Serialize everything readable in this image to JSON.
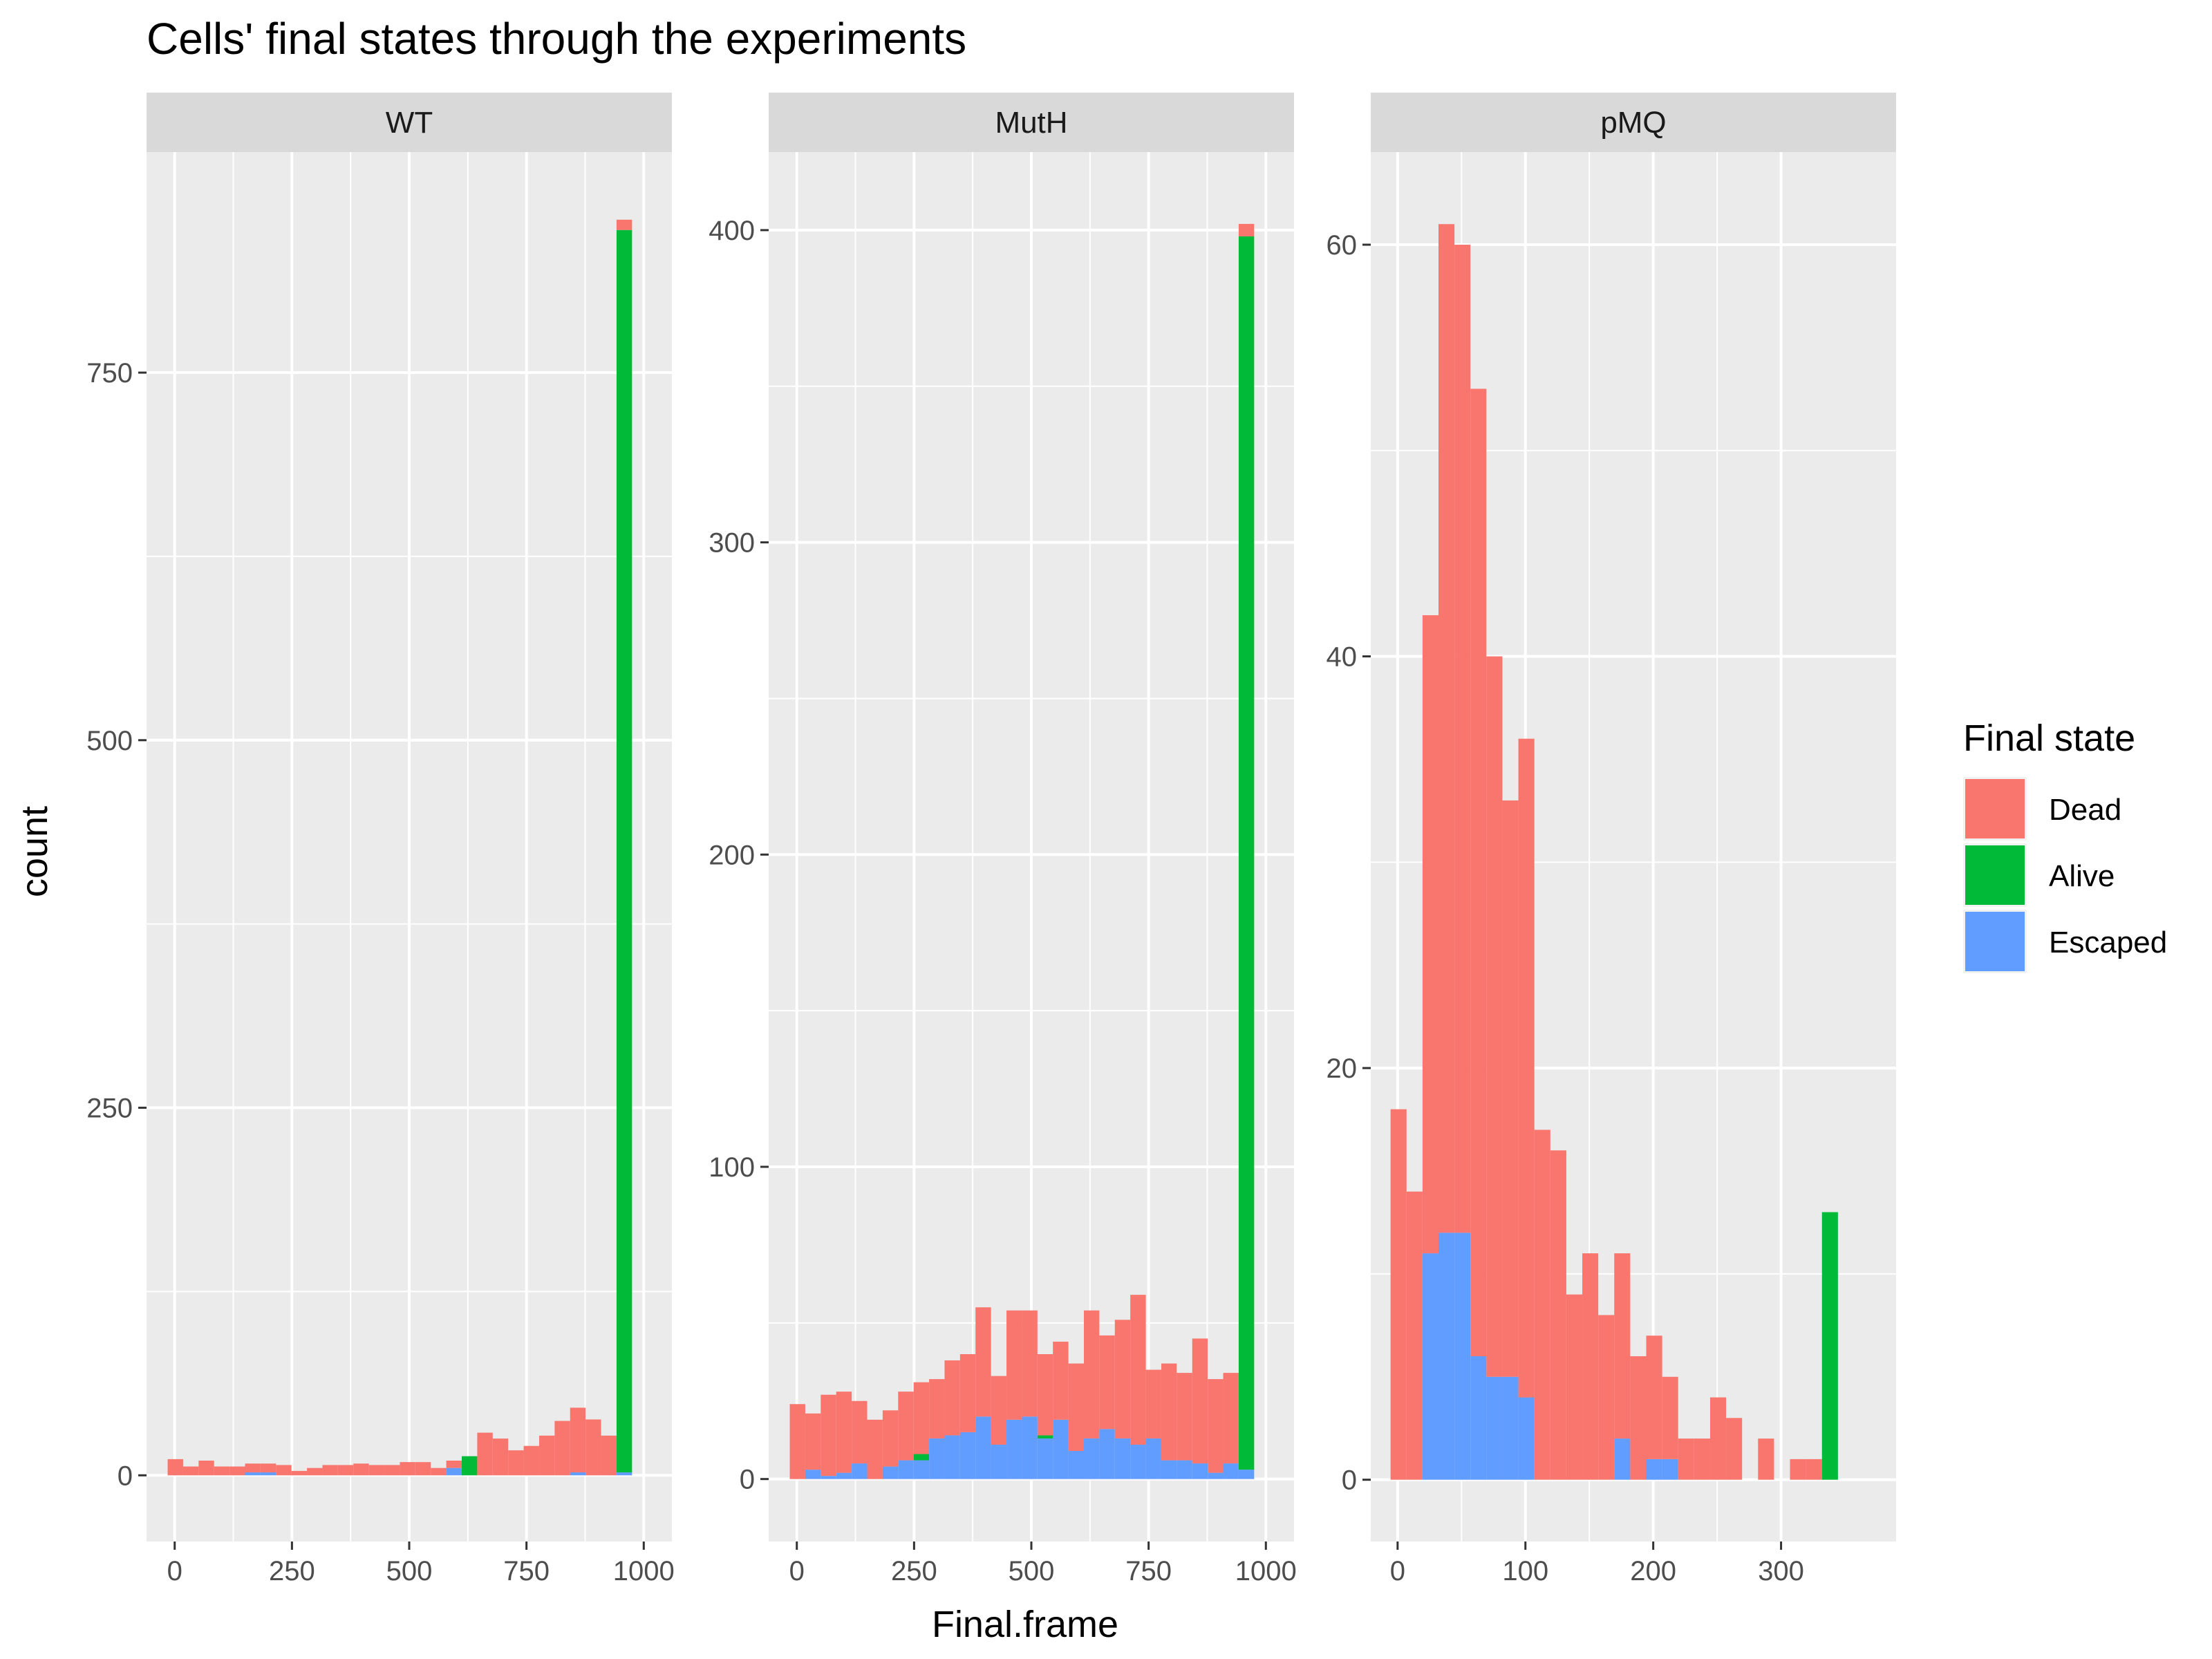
{
  "chart_data": {
    "type": "bar",
    "title": "Cells' final states through the experiments",
    "xlabel": "Final.frame",
    "ylabel": "count",
    "stacked": true,
    "legend": {
      "title": "Final state",
      "position": "right",
      "entries": [
        {
          "name": "Dead",
          "color": "#F8766D"
        },
        {
          "name": "Alive",
          "color": "#00BA38"
        },
        {
          "name": "Escaped",
          "color": "#619CFF"
        }
      ]
    },
    "colors": {
      "panel_bg": "#EBEBEB",
      "strip_bg": "#D9D9D9",
      "grid": "#FFFFFF",
      "tick": "#333333"
    },
    "facets": [
      {
        "label": "WT",
        "xlim": [
          -60,
          1060
        ],
        "ylim": [
          -45,
          900
        ],
        "xticks": [
          0,
          250,
          500,
          750,
          1000
        ],
        "yticks": [
          0,
          250,
          500,
          750
        ],
        "bin_start": -15,
        "bin_width": 33,
        "stack": [
          {
            "Escaped": 0,
            "Alive": 0,
            "Dead": 11
          },
          {
            "Escaped": 0,
            "Alive": 0,
            "Dead": 6
          },
          {
            "Escaped": 0,
            "Alive": 0,
            "Dead": 10
          },
          {
            "Escaped": 0,
            "Alive": 0,
            "Dead": 6
          },
          {
            "Escaped": 0,
            "Alive": 0,
            "Dead": 6
          },
          {
            "Escaped": 2,
            "Alive": 0,
            "Dead": 6
          },
          {
            "Escaped": 2,
            "Alive": 0,
            "Dead": 6
          },
          {
            "Escaped": 0,
            "Alive": 0,
            "Dead": 7
          },
          {
            "Escaped": 0,
            "Alive": 0,
            "Dead": 3
          },
          {
            "Escaped": 0,
            "Alive": 0,
            "Dead": 5
          },
          {
            "Escaped": 0,
            "Alive": 0,
            "Dead": 7
          },
          {
            "Escaped": 0,
            "Alive": 0,
            "Dead": 7
          },
          {
            "Escaped": 0,
            "Alive": 0,
            "Dead": 8
          },
          {
            "Escaped": 0,
            "Alive": 0,
            "Dead": 7
          },
          {
            "Escaped": 0,
            "Alive": 0,
            "Dead": 7
          },
          {
            "Escaped": 0,
            "Alive": 0,
            "Dead": 9
          },
          {
            "Escaped": 0,
            "Alive": 0,
            "Dead": 9
          },
          {
            "Escaped": 0,
            "Alive": 0,
            "Dead": 5
          },
          {
            "Escaped": 5,
            "Alive": 0,
            "Dead": 5
          },
          {
            "Escaped": 0,
            "Alive": 13,
            "Dead": 0
          },
          {
            "Escaped": 0,
            "Alive": 0,
            "Dead": 29
          },
          {
            "Escaped": 0,
            "Alive": 0,
            "Dead": 25
          },
          {
            "Escaped": 0,
            "Alive": 0,
            "Dead": 17
          },
          {
            "Escaped": 0,
            "Alive": 0,
            "Dead": 20
          },
          {
            "Escaped": 0,
            "Alive": 0,
            "Dead": 27
          },
          {
            "Escaped": 0,
            "Alive": 0,
            "Dead": 37
          },
          {
            "Escaped": 2,
            "Alive": 0,
            "Dead": 44
          },
          {
            "Escaped": 0,
            "Alive": 0,
            "Dead": 38
          },
          {
            "Escaped": 0,
            "Alive": 0,
            "Dead": 27
          },
          {
            "Escaped": 2,
            "Alive": 845,
            "Dead": 7
          }
        ]
      },
      {
        "label": "MutH",
        "xlim": [
          -60,
          1060
        ],
        "ylim": [
          -20,
          425
        ],
        "xticks": [
          0,
          250,
          500,
          750,
          1000
        ],
        "yticks": [
          0,
          100,
          200,
          300,
          400
        ],
        "bin_start": -15,
        "bin_width": 33,
        "stack": [
          {
            "Escaped": 0,
            "Alive": 0,
            "Dead": 24
          },
          {
            "Escaped": 3,
            "Alive": 0,
            "Dead": 18
          },
          {
            "Escaped": 1,
            "Alive": 0,
            "Dead": 26
          },
          {
            "Escaped": 2,
            "Alive": 0,
            "Dead": 26
          },
          {
            "Escaped": 5,
            "Alive": 0,
            "Dead": 20
          },
          {
            "Escaped": 0,
            "Alive": 0,
            "Dead": 19
          },
          {
            "Escaped": 4,
            "Alive": 0,
            "Dead": 18
          },
          {
            "Escaped": 6,
            "Alive": 0,
            "Dead": 22
          },
          {
            "Escaped": 6,
            "Alive": 2,
            "Dead": 23
          },
          {
            "Escaped": 13,
            "Alive": 0,
            "Dead": 19
          },
          {
            "Escaped": 14,
            "Alive": 0,
            "Dead": 24
          },
          {
            "Escaped": 15,
            "Alive": 0,
            "Dead": 25
          },
          {
            "Escaped": 20,
            "Alive": 0,
            "Dead": 35
          },
          {
            "Escaped": 11,
            "Alive": 0,
            "Dead": 22
          },
          {
            "Escaped": 19,
            "Alive": 0,
            "Dead": 35
          },
          {
            "Escaped": 20,
            "Alive": 0,
            "Dead": 34
          },
          {
            "Escaped": 13,
            "Alive": 1,
            "Dead": 26
          },
          {
            "Escaped": 19,
            "Alive": 0,
            "Dead": 25
          },
          {
            "Escaped": 9,
            "Alive": 0,
            "Dead": 28
          },
          {
            "Escaped": 13,
            "Alive": 0,
            "Dead": 41
          },
          {
            "Escaped": 16,
            "Alive": 0,
            "Dead": 30
          },
          {
            "Escaped": 13,
            "Alive": 0,
            "Dead": 38
          },
          {
            "Escaped": 11,
            "Alive": 0,
            "Dead": 48
          },
          {
            "Escaped": 13,
            "Alive": 0,
            "Dead": 22
          },
          {
            "Escaped": 6,
            "Alive": 0,
            "Dead": 31
          },
          {
            "Escaped": 6,
            "Alive": 0,
            "Dead": 28
          },
          {
            "Escaped": 5,
            "Alive": 0,
            "Dead": 40
          },
          {
            "Escaped": 2,
            "Alive": 0,
            "Dead": 30
          },
          {
            "Escaped": 5,
            "Alive": 0,
            "Dead": 29
          },
          {
            "Escaped": 3,
            "Alive": 395,
            "Dead": 4
          }
        ]
      },
      {
        "label": "pMQ",
        "xlim": [
          -21,
          390
        ],
        "ylim": [
          -3,
          64.5
        ],
        "xticks": [
          0,
          100,
          200,
          300
        ],
        "yticks": [
          0,
          20,
          40,
          60
        ],
        "bin_start": -5.5,
        "bin_width": 12.5,
        "stack": [
          {
            "Escaped": 0,
            "Alive": 0,
            "Dead": 18
          },
          {
            "Escaped": 0,
            "Alive": 0,
            "Dead": 14
          },
          {
            "Escaped": 11,
            "Alive": 0,
            "Dead": 31
          },
          {
            "Escaped": 12,
            "Alive": 0,
            "Dead": 49
          },
          {
            "Escaped": 12,
            "Alive": 0,
            "Dead": 48
          },
          {
            "Escaped": 6,
            "Alive": 0,
            "Dead": 47
          },
          {
            "Escaped": 5,
            "Alive": 0,
            "Dead": 35
          },
          {
            "Escaped": 5,
            "Alive": 0,
            "Dead": 28
          },
          {
            "Escaped": 4,
            "Alive": 0,
            "Dead": 32
          },
          {
            "Escaped": 0,
            "Alive": 0,
            "Dead": 17
          },
          {
            "Escaped": 0,
            "Alive": 0,
            "Dead": 16
          },
          {
            "Escaped": 0,
            "Alive": 0,
            "Dead": 9
          },
          {
            "Escaped": 0,
            "Alive": 0,
            "Dead": 11
          },
          {
            "Escaped": 0,
            "Alive": 0,
            "Dead": 8
          },
          {
            "Escaped": 2,
            "Alive": 0,
            "Dead": 9
          },
          {
            "Escaped": 0,
            "Alive": 0,
            "Dead": 6
          },
          {
            "Escaped": 1,
            "Alive": 0,
            "Dead": 6
          },
          {
            "Escaped": 1,
            "Alive": 0,
            "Dead": 4
          },
          {
            "Escaped": 0,
            "Alive": 0,
            "Dead": 2
          },
          {
            "Escaped": 0,
            "Alive": 0,
            "Dead": 2
          },
          {
            "Escaped": 0,
            "Alive": 0,
            "Dead": 4
          },
          {
            "Escaped": 0,
            "Alive": 0,
            "Dead": 3
          },
          {
            "Escaped": 0,
            "Alive": 0,
            "Dead": 0
          },
          {
            "Escaped": 0,
            "Alive": 0,
            "Dead": 2
          },
          {
            "Escaped": 0,
            "Alive": 0,
            "Dead": 0
          },
          {
            "Escaped": 0,
            "Alive": 0,
            "Dead": 1
          },
          {
            "Escaped": 0,
            "Alive": 0,
            "Dead": 1
          },
          {
            "Escaped": 0,
            "Alive": 13,
            "Dead": 0
          }
        ]
      }
    ]
  }
}
